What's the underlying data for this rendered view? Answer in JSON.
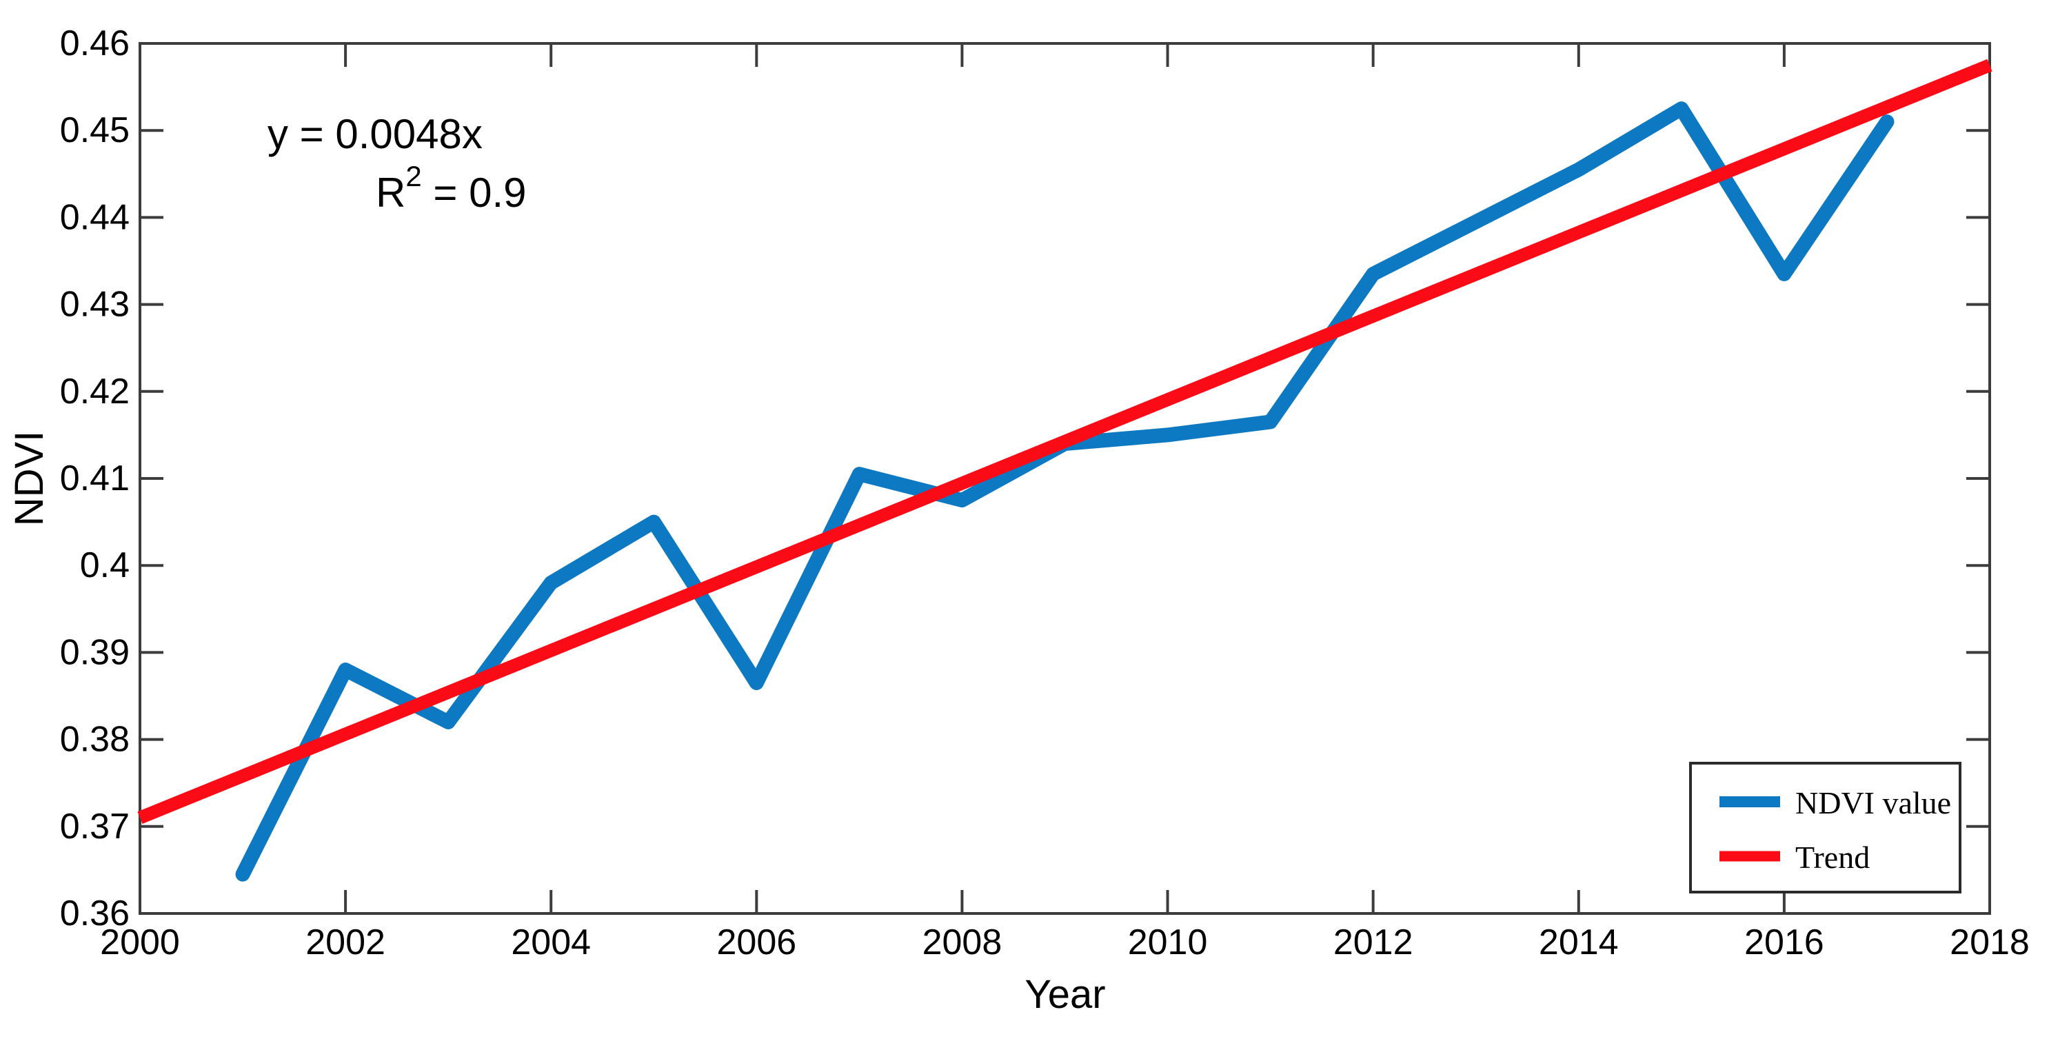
{
  "chart_data": {
    "type": "line",
    "title": "",
    "xlabel": "Year",
    "ylabel": "NDVI",
    "xlim": [
      2000,
      2018
    ],
    "ylim": [
      0.36,
      0.46
    ],
    "grid": "off",
    "x_ticks": [
      2000,
      2002,
      2004,
      2006,
      2008,
      2010,
      2012,
      2014,
      2016,
      2018
    ],
    "x_tick_labels": [
      "2000",
      "2002",
      "2004",
      "2006",
      "2008",
      "2010",
      "2012",
      "2014",
      "2016",
      "2018"
    ],
    "y_ticks": [
      0.36,
      0.37,
      0.38,
      0.39,
      0.4,
      0.41,
      0.42,
      0.43,
      0.44,
      0.45,
      0.46
    ],
    "y_tick_labels": [
      "0.36",
      "0.37",
      "0.38",
      "0.39",
      "0.4",
      "0.41",
      "0.42",
      "0.43",
      "0.44",
      "0.45",
      "0.46"
    ],
    "annotation": {
      "equation": "y = 0.0048x",
      "r2_prefix": "R",
      "r2_superscript": "2",
      "r2_suffix": " = 0.9"
    },
    "series": [
      {
        "name": "NDVI value",
        "color": "#0d79c2",
        "x": [
          2001,
          2002,
          2003,
          2004,
          2005,
          2006,
          2007,
          2008,
          2009,
          2010,
          2011,
          2012,
          2013,
          2014,
          2015,
          2016,
          2017
        ],
        "values": [
          0.3645,
          0.388,
          0.382,
          0.398,
          0.405,
          0.3865,
          0.4105,
          0.4075,
          0.414,
          0.415,
          0.4165,
          0.4335,
          0.4395,
          0.4455,
          0.4525,
          0.4335,
          0.451
        ]
      },
      {
        "name": "Trend",
        "color": "#fb0b16",
        "x": [
          2000,
          2018
        ],
        "values": [
          0.371,
          0.4575
        ]
      }
    ],
    "legend": {
      "position": "bottom-right",
      "entries": [
        "NDVI value",
        "Trend"
      ]
    }
  }
}
